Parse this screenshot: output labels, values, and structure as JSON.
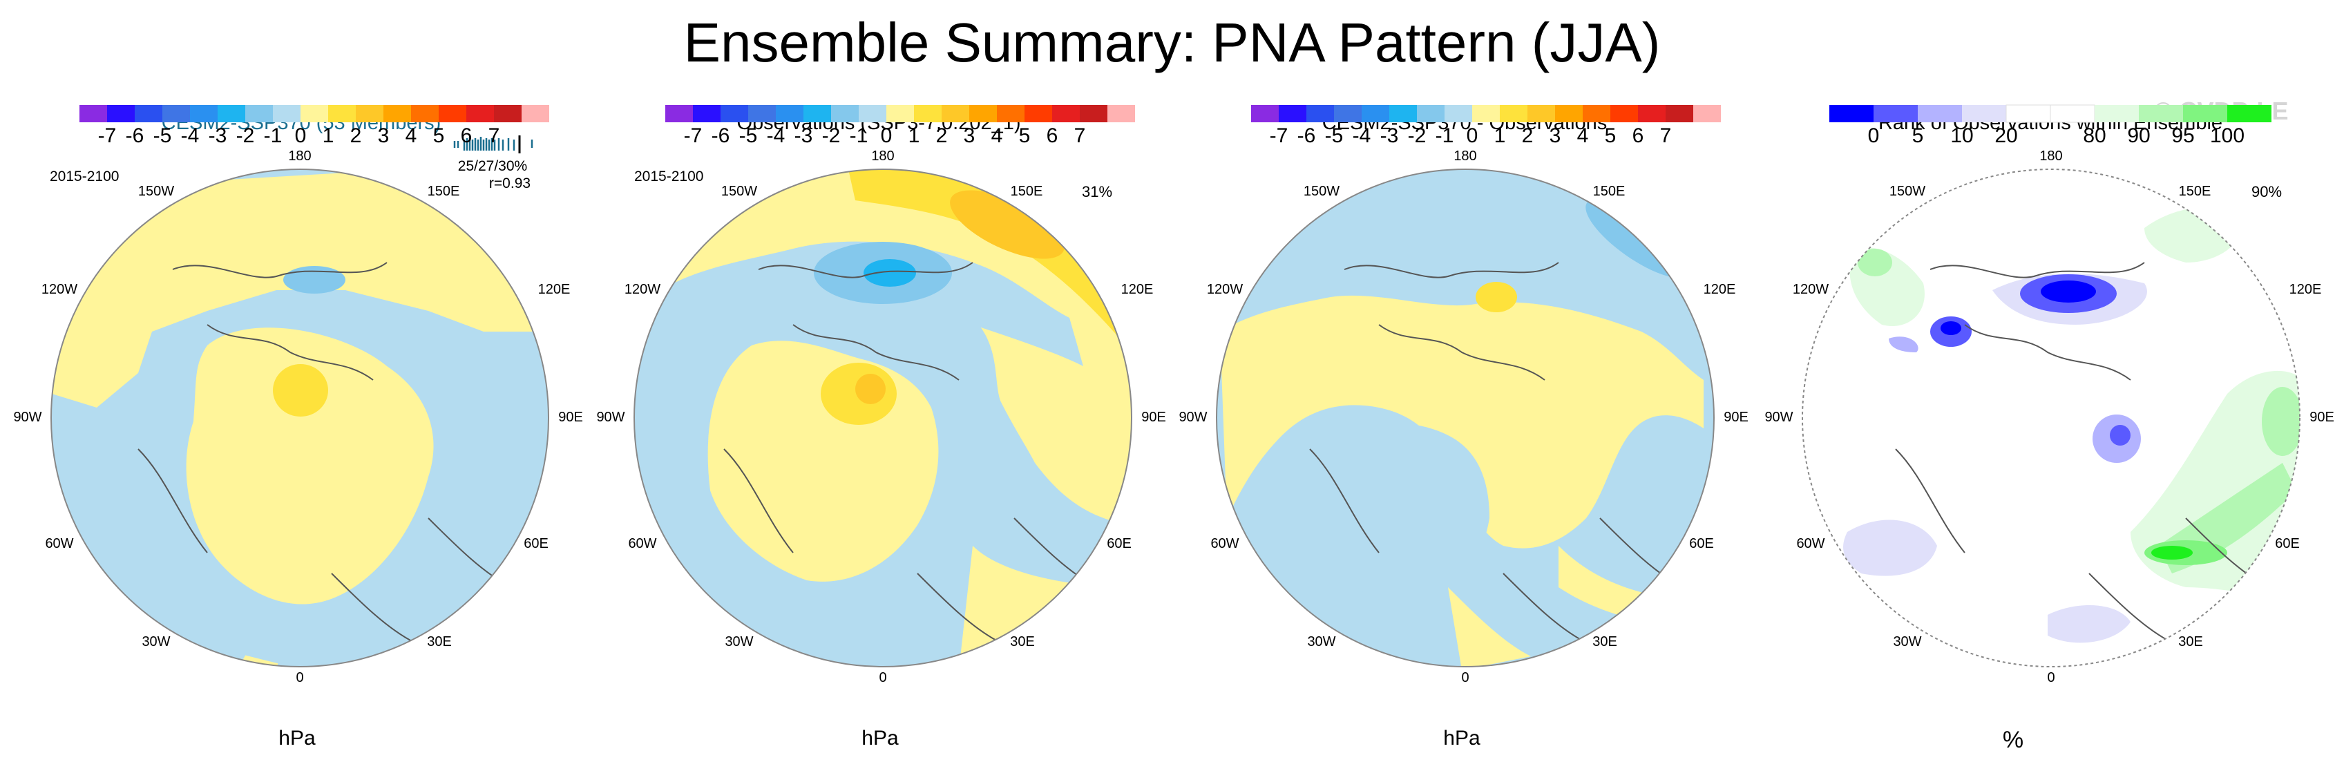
{
  "title": "Ensemble Summary: PNA Pattern (JJA)",
  "watermark": "© CVDP-LE",
  "colors": {
    "land_outline": "#555555",
    "border": "#888888",
    "title_blue": "#1a6e8f"
  },
  "colorbar_hpa": {
    "colors": [
      "#8a2be2",
      "#2a10ff",
      "#2a50f0",
      "#3f75e5",
      "#2a90f0",
      "#1eb4f0",
      "#84c8ec",
      "#b4dcf0",
      "#fff59a",
      "#fee23c",
      "#fec828",
      "#ffa500",
      "#ff7000",
      "#ff3c00",
      "#e61f1f",
      "#c81e1e",
      "#ffb2b2"
    ],
    "tick_labels": [
      "-7",
      "-6",
      "-5",
      "-4",
      "-3",
      "-2",
      "-1",
      "0",
      "1",
      "2",
      "3",
      "4",
      "5",
      "6",
      "7"
    ],
    "units": "hPa"
  },
  "colorbar_rank": {
    "colors": [
      "#0000ff",
      "#5a5aff",
      "#b3b3ff",
      "#e0e0fa",
      "#ffffff",
      "#ffffff",
      "#e2fbe2",
      "#b3f7b3",
      "#80f480",
      "#1ef01e"
    ],
    "tick_labels": [
      "0",
      "5",
      "10",
      "20",
      "80",
      "90",
      "95",
      "100"
    ],
    "units": "%"
  },
  "chart_data": [
    {
      "type": "map",
      "title": "CESM2-SSP370 (53 Members)",
      "period": "2015-2100",
      "lat_labels": [
        "180",
        "150E",
        "120E",
        "90E",
        "60E",
        "30E",
        "0",
        "30W",
        "60W",
        "90W",
        "120W",
        "150W"
      ],
      "stats": "25/27/30%",
      "correlation": "r=0.93",
      "legend": "hPa colorbar, range -7 to 7"
    },
    {
      "type": "map",
      "title": "Observations (SSP3-7.0.202_1)",
      "period": "2015-2100",
      "lat_labels": [
        "180",
        "150E",
        "120E",
        "90E",
        "60E",
        "30E",
        "0",
        "30W",
        "60W",
        "90W",
        "120W",
        "150W"
      ],
      "percent": "31%",
      "legend": "hPa colorbar, range -7 to 7"
    },
    {
      "type": "map",
      "title": "CESM2-SSP370 - Observations",
      "lat_labels": [
        "180",
        "150E",
        "120E",
        "90E",
        "60E",
        "30E",
        "0",
        "30W",
        "60W",
        "90W",
        "120W",
        "150W"
      ],
      "legend": "hPa colorbar, range -7 to 7"
    },
    {
      "type": "map",
      "title": "Rank of Observations within Ensemble",
      "lat_labels": [
        "180",
        "150E",
        "120E",
        "90E",
        "60E",
        "30E",
        "0",
        "30W",
        "60W",
        "90W",
        "120W",
        "150W"
      ],
      "percent": "90%",
      "legend": "percent colorbar, 0 to 100"
    }
  ]
}
